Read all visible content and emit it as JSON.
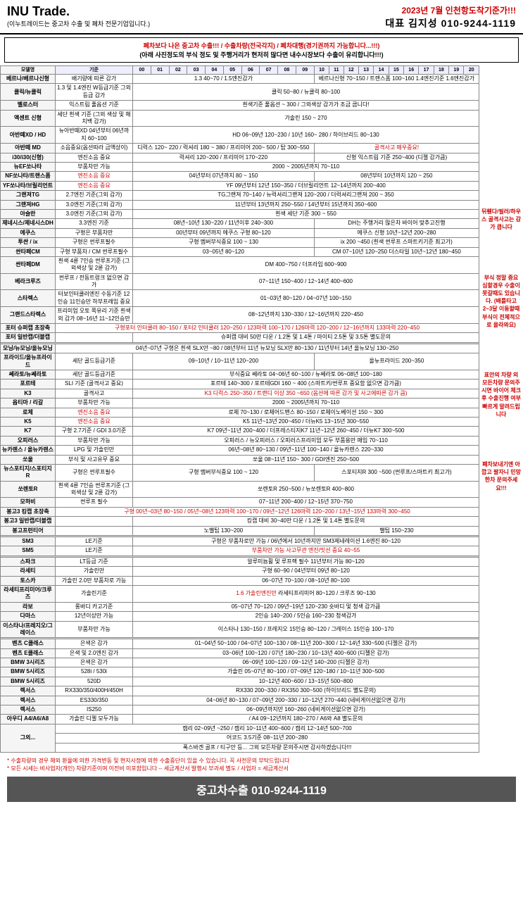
{
  "header": {
    "logo": "INU Trade.",
    "sub": "(이누트레이드는 중고차 수출 및 폐차 전문기업입니다.)",
    "date": "2023년 7월 인천항도착기준가!!!",
    "contact": "대표 김지성  010-9244-1119"
  },
  "notice": {
    "l1": "폐차보다 나은 중고차 수출!!! / 수출차량(전국각지) / 폐차대행(경기권까지 가능합니다...!!!)",
    "l2": "(아래 사진정도의 부식 정도 및 주행거리가 현저히 많다면 내수시장보다 수출이 유리합니다!!!)"
  },
  "cols": {
    "model": "모델명",
    "ref": "기준"
  },
  "years": [
    "00",
    "01",
    "02",
    "03",
    "04",
    "05",
    "06",
    "07",
    "08",
    "09",
    "10",
    "11",
    "12",
    "13",
    "14",
    "15",
    "16",
    "17",
    "18",
    "19",
    "20"
  ],
  "rows": [
    {
      "m": "베르나/베르나신형",
      "r": "배기량에 따른 감가",
      "d": "1.3 40~70 / 1.5엔진감가",
      "d2": "베르나신형 70~150 / 트랜스폼 100~160  1.4엔진기준 1.6엔진감가"
    },
    {
      "m": "클릭/뉴클릭",
      "r": "1.3 및 1.4엔진 W등급기준 그외등급 감가",
      "d": "",
      "d2": "클릭 50~80 / 뉴클릭 80~100"
    },
    {
      "m": "벨로스터",
      "r": "익스트림 풀옵션 기준",
      "d": "",
      "d2": "흰색기준 풀옵션 ~ 300 / 그외색상 감가가 조금 큽니다!"
    },
    {
      "m": "액센트 신형",
      "r": "세단 흰색 기준 (그외 색상 및 해치백 감가)",
      "d": "",
      "d2": "가솔린 150 ~ 270"
    },
    {
      "m": "아반떼XD / HD",
      "r": "뉴아반떼XD 04년부터 06년까지 60~100",
      "d": "",
      "d2": "HD 06~09년 120~230 / 10년 160~ 280 / 하이브리드 80~130"
    },
    {
      "m": "아반떼 MD",
      "r": "소음중요(옵션따라 금액상이)",
      "d": "디럭스  120~ 220  / 럭셔리 180 ~ 380 / 프리미어 200~ 500 / 탑 300~550",
      "d2": "골격사고 매우중요!",
      "red2": true
    },
    {
      "m": "i30/i30(신형)",
      "r": "엔진소음 중요",
      "d": "럭셔리 120~200  /  프리미어 170~220",
      "d2": "신형 익스트림 기준 250~400  (디젤 감가큼)"
    },
    {
      "m": "뉴EF쏘나타",
      "r": "부품차만 가능",
      "d": "",
      "d2": "2000 ~ 2005년까지  70~110"
    },
    {
      "m": "NF쏘나타/트랜스폼",
      "r": "엔진소음 중요",
      "rred": true,
      "d": "04년부터 07년까지 80 ~ 150",
      "d2": "08년부터 10년까지 120 ~ 250"
    },
    {
      "m": "YF쏘나타/브릴리언트",
      "r": "엔진소음 중요",
      "rred": true,
      "d": "",
      "d2": "YF 09년부터 12년 150~350 / 더브릴리언트 12~14년까지 200~400"
    },
    {
      "m": "그랜져TG",
      "r": "2.7엔진 기준(그외 감가)",
      "d": "",
      "d2": "TG그랜져  70~140  /  뉴럭셔리그랜져  120~200  /  더럭셔리그랜져  200 ~ 350"
    },
    {
      "m": "그랜져HG",
      "r": "3.0엔진 기준(그외 감가)",
      "d": "",
      "d2": "11년부터 13년까지  250~550  / 14년부터 15년까지  350~600"
    },
    {
      "m": "아슬란",
      "r": "3.0엔진 기준(그외 감가)",
      "d": "",
      "d2": "흰색 세단 기준  300 ~ 550"
    },
    {
      "m": "제네시스/제네시스DH",
      "r": "3.3엔진 기준",
      "d": "08년~10년  130~220 / 11년이후  240~300",
      "d2": "DH는 주행거리 많은차 바이어 맞추고진행"
    },
    {
      "m": "에쿠스",
      "r": "구형은 부품차만",
      "d": "00년부터 09년까지 에쿠스 구형  80~120",
      "d2": "에쿠스 신형  10년~12년  200~280"
    },
    {
      "m": "투싼 / ix",
      "r": "구형은 썬루프필수",
      "d": "구형 멤버부식중요  100 ~ 130",
      "d2": "ix  200 ~450 (흰색 썬루프 스마트키기준 최고가)"
    },
    {
      "m": "싼타페CM",
      "r": "구형 부품차 / CM 썬루프필수",
      "d": "03~05년  80~120",
      "d2": "CM 07~10년  120~250            더스타일 10년~12년  180~450"
    },
    {
      "m": "싼타페DM",
      "r": "흰색 4륜 7인승 썬루프기준 (그외색상 및 2륜 감가)",
      "d": "",
      "d2": "DM 400~750 / 더프라임 600~900"
    },
    {
      "m": "베라크루즈",
      "r": "썬루프 / 전동트렁크 없으면 감가",
      "d": "",
      "d2": "07~11년  150~400  /  12~14년  400~600"
    },
    {
      "m": "스타렉스",
      "r": "터보인터쿨러엔진 수동기준 12인승 11인승만 하부프레임 중요",
      "d": "",
      "d2": "01~03년 80~120 / 04~07년 100~150"
    },
    {
      "m": "그랜드스타렉스",
      "r": "프리미엄 오토 쪽유리 기준 흰색외 감가 08~16년 11~12인승만",
      "d": "",
      "d2": "08~12년까지 130~330 / 12~16년까지 220~450"
    },
    {
      "m": "포터 슈퍼캡 초장축",
      "r": "구형포터 인터쿨러 80~150 / 포터2 인터쿨러 120~250 / 123마력 100~170 / 126마력  120~200  / 12~16년까지 133마력 220~450",
      "rred": true,
      "full": true
    },
    {
      "m": "포터 일반캡/더블캡",
      "r": "",
      "d": "",
      "d2": "슈퍼캡 대비 50만 다운 / 1.2톤 및 1.4톤 / 마이티 2.5톤 및 3.5톤 별도문의"
    },
    {
      "sep": true
    },
    {
      "m": "모닝/뉴모닝/올뉴모닝",
      "r": "04년~07년 구형은 흰색 SLX만  ~80   /  08년부터 11년 뉴모닝 SLX만  80~130  / 11년부터 14년 올뉴모닝 130~250",
      "full": true
    },
    {
      "m": "프라이드/올뉴프라이드",
      "r": "세단 골드등급기준",
      "d": "09~10년 / 10~11년 120~200",
      "d2": "올뉴프라이드 200~350"
    },
    {
      "m": "쎄라토/뉴쎄라토",
      "r": "세단 골드등급기준",
      "d": "",
      "d2": "부식중요  쎄라토 04~06년  60~100  /  뉴쎄라토 06~08년  100~180"
    },
    {
      "m": "포르테",
      "r": "SLI 기준 (골격사고 중요)",
      "d": "",
      "d2": "포르테  140~300 / 포르테GDI 160 ~ 400  (스마트키/썬루프 중요함 없으면 감가큼)"
    },
    {
      "m": "K3",
      "r": "골격사고",
      "d": "",
      "d2": "K3 디럭스  250~350  / 트랜디 이상  350 ~650 (옵션에 따른 감가 및 사고에따른 감가 큼)",
      "red2": true
    },
    {
      "m": "옵티마 / 리갈",
      "r": "부품차만 가능",
      "d": "",
      "d2": "2000 ~ 2005년까지  70~110"
    },
    {
      "m": "로체",
      "r": "엔진소음 중요",
      "rred": true,
      "d": "",
      "d2": "로체  70~130  / 로체어드밴스 80~150  / 로체이노베이션  150 ~ 300"
    },
    {
      "m": "K5",
      "r": "엔진소음 중요",
      "rred": true,
      "d": "",
      "d2": "K5  11년~13년  200~450  /  더뉴K5 13~15년  300~550"
    },
    {
      "m": "K7",
      "r": "구형 2.7기준 / GDI 3.0기준",
      "d": "",
      "d2": "K7 09년~11년  200~400  / 더프레스티지K7  11년~12년  260~450  / 더뉴K7  300~500"
    },
    {
      "m": "오피러스",
      "r": "부품차만 가능",
      "d": "",
      "d2": "오피러스 / 뉴오피러스 / 오피러스프리미엄 모두 부품용만 매입  70~110"
    },
    {
      "m": "뉴카렌스 / 올뉴카렌스",
      "r": "LPG 및 가솔린만",
      "d": "",
      "d2": "06년~08년  80~130  / 09년~11년  100~140  /  올뉴카렌스  220~330"
    },
    {
      "m": "쏘울",
      "r": "부식 및 사고유무 중요",
      "d": "",
      "d2": "쏘울  08~11년 150~ 300   /  GDI엔진 250~500"
    },
    {
      "m": "뉴스포티지/스포티지R",
      "r": "구형은 썬루프필수",
      "d": "구형 멤버부식중요  100 ~ 120",
      "d2": "스포티지R  300 ~500 (썬루프/스마트키 최고가)"
    },
    {
      "m": "쏘렌토R",
      "r": "흰색 4륜 7인승 썬루프기준 (그외색상 및 2륜 감가)",
      "d": "",
      "d2": "쏘렌토R  250~500 / 뉴쏘렌토R  400~800"
    },
    {
      "m": "모하비",
      "r": "썬루프 필수",
      "d": "",
      "d2": "07~11년  200~400  /  12~15년  370~750"
    },
    {
      "m": "봉고3 킹캡 초장축",
      "r": "구형 00년~03년  80~150 / 05년~08년 123마력 100~170 / 09년~12년 126마력 120~200  / 13년~15년 133마력 300~450",
      "rred": true,
      "full": true
    },
    {
      "m": "봉고3 일반캡/더블캡",
      "r": "",
      "d": "",
      "d2": "킹캡 대비  30~40만 다운 / 1.2톤 및 1.4톤  별도문의"
    },
    {
      "m": "봉고프런티어",
      "r": "",
      "d": "노밸팁  130~200",
      "d2": "밸팁  150~230"
    },
    {
      "sep": true
    },
    {
      "m": "SM3",
      "r": "LE기준",
      "d": "",
      "d2": "구형은 부품차로만 가능 / 06년에서 10년까지만 SM3제네레이션   1.6엔진  80~120"
    },
    {
      "m": "SM5",
      "r": "LE기준",
      "d": "",
      "d2": "부품차만 가능 사고무관 엔진/밋션 중요 40~55",
      "red2": true
    },
    {
      "sep": true
    },
    {
      "m": "스파크",
      "r": "LT등급 기준",
      "d": "",
      "d2": "알루미늄휠 및 루프랙 필수 11년부터 가능 80~120"
    },
    {
      "m": "라세티",
      "r": "가솔린만",
      "d": "",
      "d2": "구형  60~90  /  04년부터 09년  80~120"
    },
    {
      "m": "토스카",
      "r": "가솔린 2.0만 부품차로 가능",
      "d": "",
      "d2": "06~07년  70~100   /   08~10년  80~100"
    },
    {
      "m": "라세티프리미어/크루즈",
      "r": "가솔린기준",
      "d": "",
      "d2": "1.6 가솔린엔진만  라세티프리미어  80~120   /  크루즈  90~130",
      "red2p": true
    },
    {
      "m": "라보",
      "r": "롱바디 카고기준",
      "d": "",
      "d2": "05~07년  70~120  /  09년~19년 120~230   숏바디 및 청색 감가큼"
    },
    {
      "m": "다마스",
      "r": "12년이상만 가능",
      "d": "",
      "d2": "2인승  140~200  /  5인승  160~230   청색감가"
    },
    {
      "m": "이스타나/프레지오/그레이스",
      "r": "부품차만 가능",
      "d": "",
      "d2": "이스타나 130~150 / 프레지오  15인승  80~120 / 그레이스 15인승 100~170"
    },
    {
      "sep": true
    },
    {
      "m": "벤츠 C클래스",
      "r": "은색은 감가",
      "d": "",
      "d2": "01~04년 50~100 / 04~07년 100~130 / 08~11년 200~300 /  12~14년 330~500  (디젤은 감가)"
    },
    {
      "m": "벤츠 E클래스",
      "r": "은색 및 2.0엔진 감가",
      "d": "",
      "d2": "03~06년  100~120  / 07년  180~230  / 10~13년  400~600  (디젤은 감가)"
    },
    {
      "m": "BMW 3시리즈",
      "r": "은색은 감가",
      "d": "",
      "d2": "06~09년  100~120  / 09~12년  140~200  (디젤은 감가)"
    },
    {
      "m": "BMW 5시리즈",
      "r": "528i / 530i",
      "d": "",
      "d2": "가솔린  05~07년  80~100  /  07~09년 120~180  / 10~11년  300~500"
    },
    {
      "m": "BMW 5시리즈",
      "r": "520D",
      "d": "",
      "d2": "10~12년  400~600  /  13~15년  500~800"
    },
    {
      "m": "렉서스",
      "r": "RX330/350/400H/450H",
      "d": "",
      "d2": "RX330  200~330 / RX350 300~500  (하이브리드 별도문의)"
    },
    {
      "m": "렉서스",
      "r": "ES330/350",
      "d": "",
      "d2": "04~06년  80~130  / 07~09년 200~330 / 10~12년  270~440  (네비게이션없으면 감가)"
    },
    {
      "m": "렉서스",
      "r": "IS250",
      "d": "",
      "d2": "06~09년까지만  160~260 (네비게이션없으면 감가)"
    },
    {
      "m": "아우디 A4/A6/A8",
      "r": "가솔린 디젤 모두가능",
      "d": "",
      "d2": "/  A4 09~12년까지 180~270  /  A6와 A8 별도문의"
    },
    {
      "etc": true,
      "m": "그외...",
      "lines": [
        "캠리 02~09년  ~250  /  캠리  10~11년 400~600  /  캠리  12~14년  500~700",
        "어코드 3.5기준 08~11년  200~280",
        "폭스바겐 골프 / 티구안 등...  그외 모든차량 문의주시면 감사하겠습니다!!!"
      ]
    }
  ],
  "side": [
    "뒤휀다/필러/하우스 골격사고는 감가 큽니다",
    "부식 정말 중요 심할경우 수출이 못갈때도 있습니다. (배를타고 2~3달 이동할때 부식이 전체적으로 올라와요)",
    "표안의 차량 외 모든차량 문의주시면 바이어 체크 후 수출진행 여부 빠르게 알려드립니다",
    "폐차보내기엔 아깝고 팔자니 민망한차 문의주세요!!!"
  ],
  "footer": {
    "l1": "* 수출차량의 경우 해외 환율에 의한 가격변동 및 현지사정에 의한 수출중단이 있을 수 있습니다. 꼭 사전문의 부탁드립니다",
    "l2": "* 모든 시세는 비사업자(개인) 차량기준이며 이전비 미포함입니다 -- 세금계산서 발행시 부과세 별도 / 사업자 = 세금계산서",
    "banner": "중고차수출   010-9244-1119"
  }
}
